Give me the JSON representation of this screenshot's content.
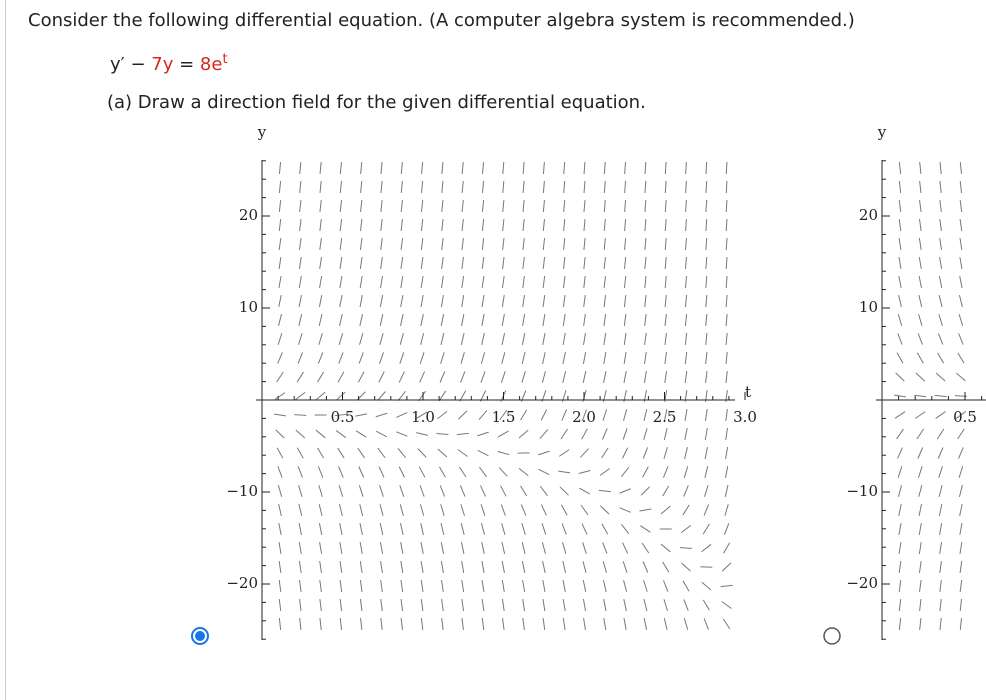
{
  "question": "Consider the following differential equation. (A computer algebra system is recommended.)",
  "equation": {
    "lhs": "y′ − ",
    "coef": "7y",
    "eq": " = ",
    "rhs": "8e",
    "exp": "t"
  },
  "part_a": "(a) Draw a direction field for the given differential equation.",
  "plots": [
    {
      "y_label": "y",
      "t_label": "t",
      "xticks": [
        {
          "value": 0.5,
          "label": "0.5"
        },
        {
          "value": 1,
          "label": "1.0"
        },
        {
          "value": 1.5,
          "label": "1.5"
        },
        {
          "value": 2,
          "label": "2.0"
        },
        {
          "value": 2.5,
          "label": "2.5"
        },
        {
          "value": 3,
          "label": "3.0"
        }
      ],
      "yticks": [
        {
          "value": 20,
          "label": "20"
        },
        {
          "value": 10,
          "label": "10"
        },
        {
          "value": -10,
          "label": "−10"
        },
        {
          "value": -20,
          "label": "−20"
        }
      ]
    },
    {
      "y_label": "y",
      "xticks": [
        {
          "value": 0.5,
          "label": "0.5"
        }
      ],
      "yticks": [
        {
          "value": 20,
          "label": "20"
        },
        {
          "value": 10,
          "label": "10"
        },
        {
          "value": -10,
          "label": "−10"
        },
        {
          "value": -20,
          "label": "−20"
        }
      ]
    }
  ]
}
